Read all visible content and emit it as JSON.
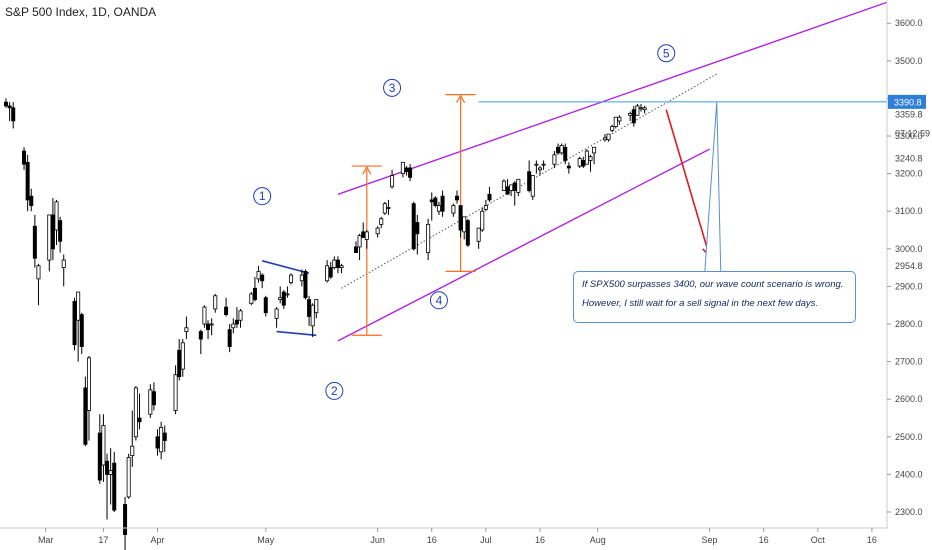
{
  "header": {
    "title": "S&P 500 Index, 1D, OANDA"
  },
  "colors": {
    "candle_up": "#ffffff",
    "candle_down": "#000000",
    "candle_outline": "#000000",
    "channel": "#b026e0",
    "measure": "#ff6a1f",
    "horizontal_level": "#3d9be0",
    "arrow": "#e01b1b",
    "wave_label": "#1f3fb5",
    "note_border": "#5b8fd0",
    "price_badge_bg": "#2f7fd8",
    "price_badge_text": "#ffffff"
  },
  "chart_data": {
    "type": "candlestick",
    "title": "S&P 500 Index, 1D, OANDA",
    "xlabel": "",
    "ylabel": "",
    "ylim": [
      2280,
      3680
    ],
    "x_range": [
      "2020-02-19",
      "2020-10-23"
    ],
    "y_ticks": [
      2300,
      2400,
      2500,
      2600,
      2700,
      2800,
      2900,
      3000,
      3100,
      3200,
      3300,
      3400,
      3500,
      3600
    ],
    "y_tick_labels": [
      "2300.0",
      "2400.0",
      "2500.0",
      "2600.0",
      "2700.0",
      "2800.0",
      "2900.0",
      "3000.0",
      "3100.0",
      "3200.0",
      "3300.0",
      "3400.0",
      "3500.0",
      "3600.0"
    ],
    "x_ticks": [
      {
        "date": "2020-03-01",
        "label": "Mar"
      },
      {
        "date": "2020-03-17",
        "label": "17"
      },
      {
        "date": "2020-04-01",
        "label": "Apr"
      },
      {
        "date": "2020-05-01",
        "label": "May"
      },
      {
        "date": "2020-06-01",
        "label": "Jun"
      },
      {
        "date": "2020-06-16",
        "label": "16"
      },
      {
        "date": "2020-07-01",
        "label": "Jul"
      },
      {
        "date": "2020-07-16",
        "label": "16"
      },
      {
        "date": "2020-08-01",
        "label": "Aug"
      },
      {
        "date": "2020-09-01",
        "label": "Sep"
      },
      {
        "date": "2020-09-16",
        "label": "16"
      },
      {
        "date": "2020-10-01",
        "label": "Oct"
      },
      {
        "date": "2020-10-16",
        "label": "16"
      }
    ],
    "price_labels": {
      "level": "3390.8",
      "last": "3359.8",
      "countdown": "07:12:59",
      "extra": [
        "3240.8",
        "2954.8"
      ]
    },
    "candles": [
      [
        "2020-02-19",
        3390,
        3400,
        3375,
        3380
      ],
      [
        "2020-02-20",
        3380,
        3390,
        3340,
        3375
      ],
      [
        "2020-02-21",
        3375,
        3390,
        3320,
        3340
      ],
      [
        "2020-02-24",
        3260,
        3270,
        3210,
        3225
      ],
      [
        "2020-02-25",
        3230,
        3250,
        3100,
        3130
      ],
      [
        "2020-02-26",
        3140,
        3160,
        3100,
        3115
      ],
      [
        "2020-02-27",
        3060,
        3090,
        2950,
        2975
      ],
      [
        "2020-02-28",
        2920,
        2960,
        2850,
        2955
      ],
      [
        "2020-03-02",
        2970,
        3090,
        2940,
        3090
      ],
      [
        "2020-03-03",
        3090,
        3135,
        2970,
        3000
      ],
      [
        "2020-03-04",
        3050,
        3130,
        3010,
        3125
      ],
      [
        "2020-03-05",
        3075,
        3085,
        2990,
        3020
      ],
      [
        "2020-03-06",
        2950,
        2985,
        2900,
        2970
      ],
      [
        "2020-03-09",
        2860,
        2870,
        2730,
        2745
      ],
      [
        "2020-03-10",
        2810,
        2885,
        2700,
        2885
      ],
      [
        "2020-03-11",
        2825,
        2830,
        2720,
        2740
      ],
      [
        "2020-03-12",
        2630,
        2660,
        2475,
        2480
      ],
      [
        "2020-03-13",
        2570,
        2715,
        2490,
        2710
      ],
      [
        "2020-03-16",
        2510,
        2560,
        2375,
        2385
      ],
      [
        "2020-03-17",
        2425,
        2560,
        2380,
        2530
      ],
      [
        "2020-03-18",
        2435,
        2455,
        2280,
        2400
      ],
      [
        "2020-03-19",
        2400,
        2470,
        2320,
        2410
      ],
      [
        "2020-03-20",
        2430,
        2460,
        2300,
        2305
      ],
      [
        "2020-03-23",
        2320,
        2340,
        2190,
        2240
      ],
      [
        "2020-03-24",
        2340,
        2455,
        2335,
        2445
      ],
      [
        "2020-03-25",
        2450,
        2570,
        2420,
        2475
      ],
      [
        "2020-03-26",
        2500,
        2635,
        2490,
        2630
      ],
      [
        "2020-03-27",
        2550,
        2615,
        2520,
        2540
      ],
      [
        "2020-03-30",
        2560,
        2640,
        2550,
        2625
      ],
      [
        "2020-03-31",
        2620,
        2645,
        2570,
        2585
      ],
      [
        "2020-04-01",
        2500,
        2520,
        2450,
        2470
      ],
      [
        "2020-04-02",
        2460,
        2540,
        2440,
        2525
      ],
      [
        "2020-04-03",
        2510,
        2530,
        2460,
        2490
      ],
      [
        "2020-04-06",
        2570,
        2690,
        2560,
        2665
      ],
      [
        "2020-04-07",
        2730,
        2760,
        2650,
        2660
      ],
      [
        "2020-04-08",
        2680,
        2760,
        2660,
        2750
      ],
      [
        "2020-04-09",
        2780,
        2820,
        2760,
        2790
      ],
      [
        "2020-04-13",
        2780,
        2785,
        2720,
        2760
      ],
      [
        "2020-04-14",
        2800,
        2850,
        2790,
        2845
      ],
      [
        "2020-04-15",
        2800,
        2810,
        2760,
        2785
      ],
      [
        "2020-04-16",
        2800,
        2815,
        2770,
        2800
      ],
      [
        "2020-04-17",
        2840,
        2880,
        2830,
        2875
      ],
      [
        "2020-04-20",
        2845,
        2870,
        2820,
        2825
      ],
      [
        "2020-04-21",
        2785,
        2800,
        2725,
        2740
      ],
      [
        "2020-04-22",
        2790,
        2815,
        2775,
        2800
      ],
      [
        "2020-04-23",
        2810,
        2845,
        2790,
        2800
      ],
      [
        "2020-04-24",
        2810,
        2840,
        2790,
        2835
      ],
      [
        "2020-04-27",
        2855,
        2885,
        2850,
        2880
      ],
      [
        "2020-04-28",
        2895,
        2925,
        2860,
        2865
      ],
      [
        "2020-04-29",
        2920,
        2955,
        2910,
        2940
      ],
      [
        "2020-04-30",
        2930,
        2935,
        2895,
        2915
      ],
      [
        "2020-05-01",
        2870,
        2875,
        2820,
        2830
      ],
      [
        "2020-05-04",
        2815,
        2845,
        2790,
        2840
      ],
      [
        "2020-05-05",
        2865,
        2900,
        2855,
        2870
      ],
      [
        "2020-05-06",
        2885,
        2890,
        2840,
        2850
      ],
      [
        "2020-05-07",
        2880,
        2900,
        2870,
        2880
      ],
      [
        "2020-05-08",
        2910,
        2935,
        2905,
        2930
      ],
      [
        "2020-05-11",
        2915,
        2945,
        2900,
        2930
      ],
      [
        "2020-05-12",
        2940,
        2945,
        2865,
        2870
      ],
      [
        "2020-05-13",
        2865,
        2875,
        2795,
        2820
      ],
      [
        "2020-05-14",
        2795,
        2855,
        2765,
        2850
      ],
      [
        "2020-05-15",
        2830,
        2865,
        2815,
        2865
      ],
      [
        "2020-05-18",
        2915,
        2970,
        2910,
        2955
      ],
      [
        "2020-05-19",
        2950,
        2965,
        2920,
        2925
      ],
      [
        "2020-05-20",
        2950,
        2980,
        2945,
        2970
      ],
      [
        "2020-05-21",
        2970,
        2980,
        2935,
        2950
      ],
      [
        "2020-05-22",
        2950,
        2960,
        2935,
        2955
      ],
      [
        "2020-05-26",
        3005,
        3020,
        2990,
        2990
      ],
      [
        "2020-05-27",
        3005,
        3040,
        2970,
        3035
      ],
      [
        "2020-05-28",
        3045,
        3070,
        3030,
        3030
      ],
      [
        "2020-05-29",
        3025,
        3050,
        3000,
        3045
      ],
      [
        "2020-06-01",
        3040,
        3060,
        3030,
        3055
      ],
      [
        "2020-06-02",
        3065,
        3085,
        3055,
        3080
      ],
      [
        "2020-06-03",
        3095,
        3125,
        3090,
        3120
      ],
      [
        "2020-06-04",
        3110,
        3130,
        3090,
        3110
      ],
      [
        "2020-06-05",
        3165,
        3210,
        3160,
        3195
      ],
      [
        "2020-06-08",
        3200,
        3230,
        3190,
        3230
      ],
      [
        "2020-06-09",
        3215,
        3220,
        3195,
        3205
      ],
      [
        "2020-06-10",
        3215,
        3225,
        3180,
        3190
      ],
      [
        "2020-06-11",
        3120,
        3125,
        2995,
        3000
      ],
      [
        "2020-06-12",
        3070,
        3090,
        2985,
        3040
      ],
      [
        "2020-06-15",
        2990,
        3080,
        2970,
        3065
      ],
      [
        "2020-06-16",
        3130,
        3150,
        3075,
        3125
      ],
      [
        "2020-06-17",
        3135,
        3140,
        3110,
        3115
      ],
      [
        "2020-06-18",
        3100,
        3125,
        3090,
        3115
      ],
      [
        "2020-06-19",
        3140,
        3155,
        3085,
        3100
      ],
      [
        "2020-06-22",
        3095,
        3120,
        3085,
        3115
      ],
      [
        "2020-06-23",
        3140,
        3155,
        3120,
        3130
      ],
      [
        "2020-06-24",
        3115,
        3115,
        3030,
        3050
      ],
      [
        "2020-06-25",
        3045,
        3085,
        3025,
        3085
      ],
      [
        "2020-06-26",
        3075,
        3080,
        3005,
        3010
      ],
      [
        "2020-06-29",
        3020,
        3055,
        3000,
        3055
      ],
      [
        "2020-06-30",
        3050,
        3110,
        3045,
        3100
      ],
      [
        "2020-07-01",
        3105,
        3130,
        3100,
        3115
      ],
      [
        "2020-07-02",
        3145,
        3165,
        3125,
        3130
      ],
      [
        "2020-07-06",
        3155,
        3185,
        3155,
        3180
      ],
      [
        "2020-07-07",
        3165,
        3185,
        3145,
        3145
      ],
      [
        "2020-07-08",
        3155,
        3170,
        3140,
        3170
      ],
      [
        "2020-07-09",
        3175,
        3180,
        3115,
        3155
      ],
      [
        "2020-07-10",
        3150,
        3185,
        3140,
        3185
      ],
      [
        "2020-07-13",
        3205,
        3235,
        3150,
        3155
      ],
      [
        "2020-07-14",
        3140,
        3195,
        3130,
        3195
      ],
      [
        "2020-07-15",
        3225,
        3235,
        3200,
        3225
      ],
      [
        "2020-07-16",
        3210,
        3220,
        3195,
        3215
      ],
      [
        "2020-07-17",
        3225,
        3235,
        3210,
        3225
      ],
      [
        "2020-07-20",
        3225,
        3260,
        3215,
        3250
      ],
      [
        "2020-07-21",
        3270,
        3280,
        3250,
        3255
      ],
      [
        "2020-07-22",
        3255,
        3280,
        3250,
        3275
      ],
      [
        "2020-07-23",
        3270,
        3280,
        3225,
        3235
      ],
      [
        "2020-07-24",
        3220,
        3230,
        3200,
        3215
      ],
      [
        "2020-07-27",
        3220,
        3245,
        3215,
        3240
      ],
      [
        "2020-07-28",
        3235,
        3245,
        3215,
        3220
      ],
      [
        "2020-07-29",
        3225,
        3265,
        3225,
        3260
      ],
      [
        "2020-07-30",
        3235,
        3250,
        3205,
        3245
      ],
      [
        "2020-07-31",
        3255,
        3270,
        3225,
        3270
      ],
      [
        "2020-08-03",
        3290,
        3305,
        3285,
        3295
      ],
      [
        "2020-08-04",
        3290,
        3305,
        3285,
        3305
      ],
      [
        "2020-08-05",
        3315,
        3330,
        3310,
        3325
      ],
      [
        "2020-08-06",
        3325,
        3350,
        3320,
        3350
      ],
      [
        "2020-08-07",
        3340,
        3355,
        3330,
        3350
      ],
      [
        "2020-08-10",
        3355,
        3365,
        3340,
        3360
      ],
      [
        "2020-08-11",
        3370,
        3380,
        3325,
        3335
      ],
      [
        "2020-08-12",
        3355,
        3385,
        3355,
        3380
      ],
      [
        "2020-08-13",
        3375,
        3385,
        3365,
        3375
      ],
      [
        "2020-08-14",
        3370,
        3380,
        3360,
        3375
      ]
    ],
    "annotations": {
      "wave_labels": [
        {
          "label": "1",
          "date": "2020-04-30",
          "price": 3140
        },
        {
          "label": "2",
          "date": "2020-05-20",
          "price": 2622
        },
        {
          "label": "3",
          "date": "2020-06-05",
          "price": 3428
        },
        {
          "label": "4",
          "date": "2020-06-18",
          "price": 2863
        },
        {
          "label": "5",
          "date": "2020-08-20",
          "price": 3520
        }
      ],
      "channel_upper": [
        [
          "2020-05-21",
          3145
        ],
        [
          "2020-10-20",
          3655
        ]
      ],
      "channel_lower": [
        [
          "2020-05-21",
          2755
        ],
        [
          "2020-09-01",
          3265
        ]
      ],
      "dotted_trend": [
        [
          "2020-05-22",
          2895
        ],
        [
          "2020-09-03",
          3465
        ]
      ],
      "horizontal_level": {
        "price": 3390.8,
        "from": "2020-06-29"
      },
      "measure_1": {
        "date": "2020-05-29",
        "low": 2770,
        "high": 3220
      },
      "measure_2": {
        "date": "2020-06-24",
        "low": 2940,
        "high": 3410
      },
      "wave1_top_line": [
        [
          "2020-04-30",
          2968
        ],
        [
          "2020-05-13",
          2935
        ]
      ],
      "wave2_bottom_line": [
        [
          "2020-05-04",
          2780
        ],
        [
          "2020-05-15",
          2770
        ]
      ],
      "arrow": [
        [
          "2020-08-20",
          3370
        ],
        [
          "2020-09-01",
          2980
        ]
      ],
      "callout_pointer": {
        "date": "2020-09-03",
        "price": 3390
      }
    }
  },
  "note": {
    "line1": "If SPX500 surpasses 3400, our wave count scenario is wrong.",
    "line2": "However, I still wait for a sell signal in the next few days."
  }
}
